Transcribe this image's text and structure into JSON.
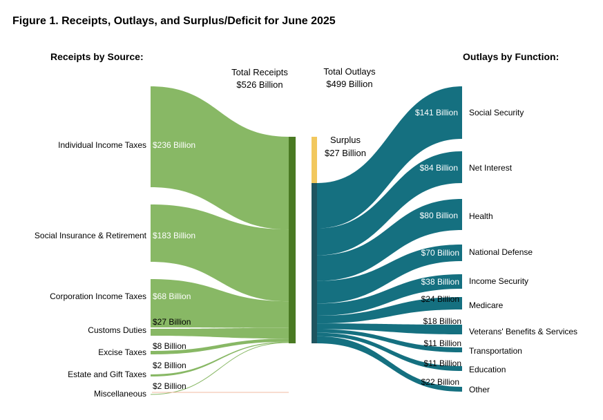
{
  "figure_title": "Figure 1. Receipts, Outlays, and Surplus/Deficit for June 2025",
  "receipts_heading": "Receipts by Source:",
  "outlays_heading": "Outlays by Function:",
  "total_receipts": {
    "label": "Total Receipts",
    "value": "$526 Billion"
  },
  "total_outlays": {
    "label": "Total Outlays",
    "value": "$499 Billion"
  },
  "surplus": {
    "label": "Surplus",
    "value": "$27 Billion",
    "amount": 27
  },
  "colors": {
    "receipts_flow": "#88b865",
    "receipts_bar": "#4a7a23",
    "outlays_flow": "#157080",
    "outlays_bar": "#1f5560",
    "surplus": "#f2c85e",
    "misc_line": "#f2b8a0"
  },
  "chart_data": {
    "type": "sankey",
    "units": "Billions of dollars",
    "receipts": [
      {
        "name": "Individual Income Taxes",
        "value": 236,
        "label": "$236 Billion"
      },
      {
        "name": "Social Insurance & Retirement",
        "value": 183,
        "label": "$183 Billion"
      },
      {
        "name": "Corporation Income Taxes",
        "value": 68,
        "label": "$68 Billion"
      },
      {
        "name": "Customs Duties",
        "value": 27,
        "label": "$27 Billion"
      },
      {
        "name": "Excise Taxes",
        "value": 8,
        "label": "$8 Billion"
      },
      {
        "name": "Estate and Gift Taxes",
        "value": 2,
        "label": "$2 Billion"
      },
      {
        "name": "Miscellaneous",
        "value": 2,
        "label": "$2 Billion"
      }
    ],
    "outlays": [
      {
        "name": "Social Security",
        "value": 141,
        "label": "$141 Billion"
      },
      {
        "name": "Net Interest",
        "value": 84,
        "label": "$84 Billion"
      },
      {
        "name": "Health",
        "value": 80,
        "label": "$80 Billion"
      },
      {
        "name": "National Defense",
        "value": 70,
        "label": "$70 Billion"
      },
      {
        "name": "Income Security",
        "value": 38,
        "label": "$38 Billion"
      },
      {
        "name": "Medicare",
        "value": 24,
        "label": "$24 Billion"
      },
      {
        "name": "Veterans' Benefits & Services",
        "value": 18,
        "label": "$18 Billion"
      },
      {
        "name": "Transportation",
        "value": 11,
        "label": "$11 Billion"
      },
      {
        "name": "Education",
        "value": 11,
        "label": "$11 Billion"
      },
      {
        "name": "Other",
        "value": 22,
        "label": "$22 Billion"
      }
    ]
  }
}
